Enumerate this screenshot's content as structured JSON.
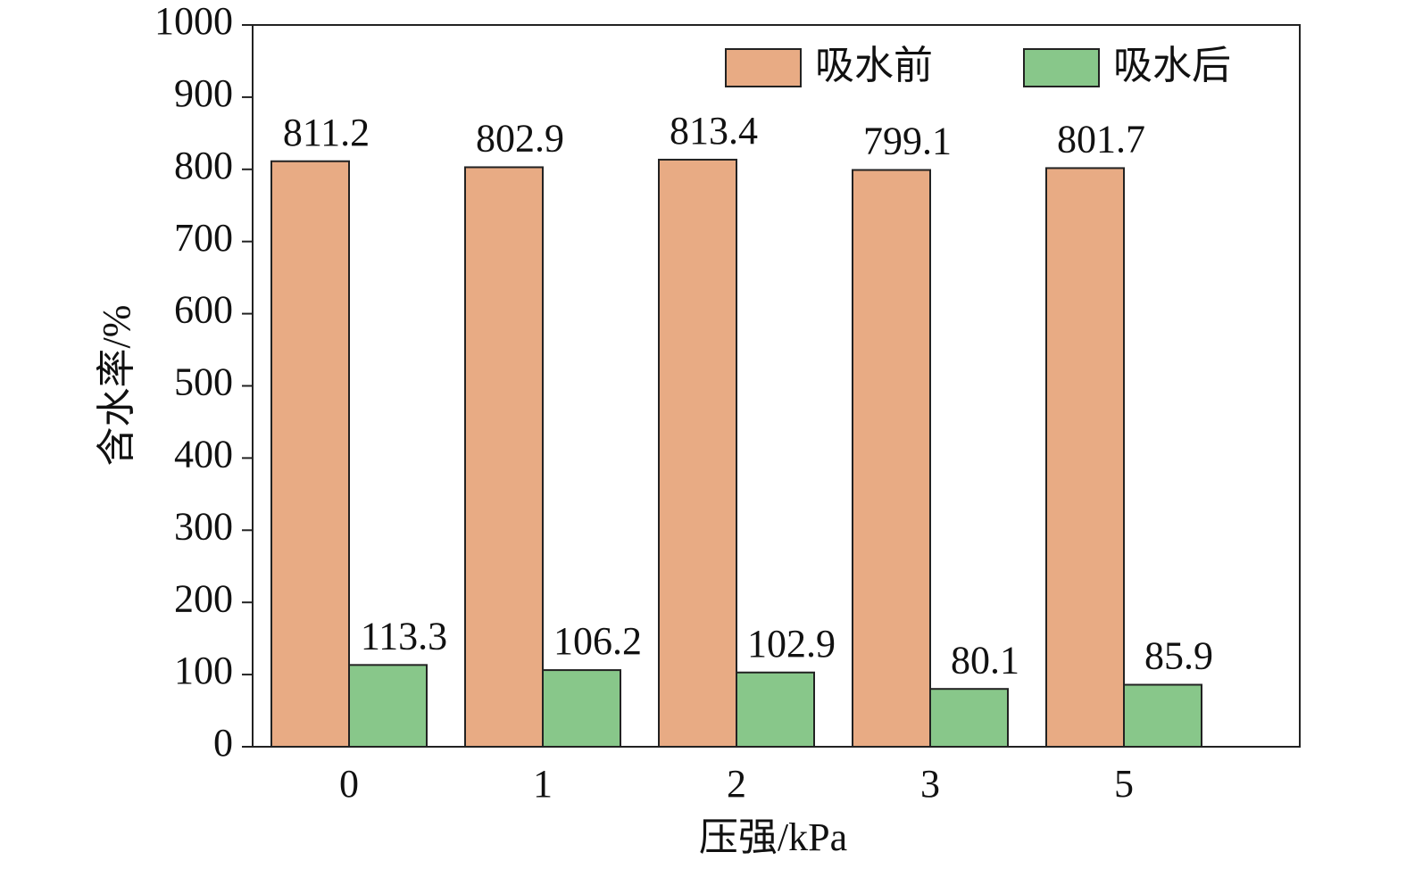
{
  "chart_data": {
    "type": "bar",
    "x_label": "压强/kPa",
    "y_label": "含水率/%",
    "categories": [
      "0",
      "1",
      "2",
      "3",
      "5"
    ],
    "series": [
      {
        "name": "吸水前",
        "color": "#e8ab84",
        "values": [
          811.2,
          802.9,
          813.4,
          799.1,
          801.7
        ]
      },
      {
        "name": "吸水后",
        "color": "#88c78a",
        "values": [
          113.3,
          106.2,
          102.9,
          80.1,
          85.9
        ]
      }
    ],
    "ylim": [
      0,
      1000
    ],
    "yticks": [
      0,
      100,
      200,
      300,
      400,
      500,
      600,
      700,
      800,
      900,
      1000
    ],
    "legend": "upper right",
    "grid": false
  }
}
